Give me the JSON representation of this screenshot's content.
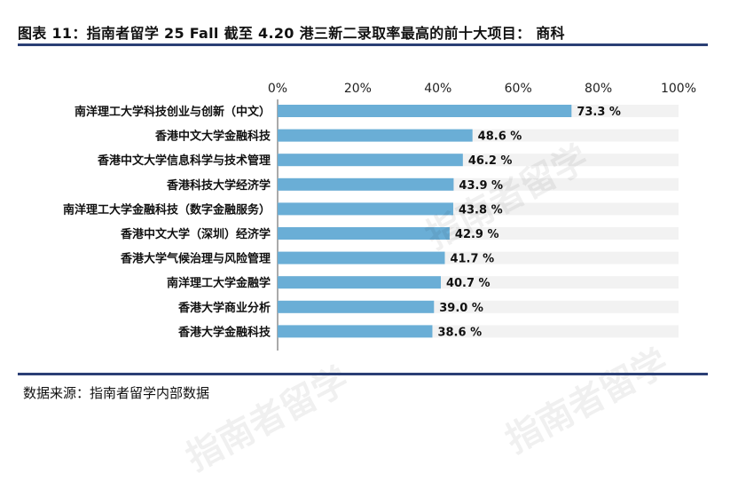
{
  "header": {
    "title": "图表 11：指南者留学 25 Fall 截至 4.20 港三新二录取率最高的前十大项目： 商科"
  },
  "footer": {
    "source": "数据来源：指南者留学内部数据"
  },
  "watermark": "指南者留学",
  "colors": {
    "bar": "#6aaed6",
    "track": "#f2f2f2",
    "rule": "#2b3f75"
  },
  "chart_data": {
    "type": "bar",
    "orientation": "horizontal",
    "categories": [
      "南洋理工大学科技创业与创新（中文）",
      "香港中文大学金融科技",
      "香港中文大学信息科学与技术管理",
      "香港科技大学经济学",
      "南洋理工大学金融科技（数字金融服务）",
      "香港中文大学（深圳）经济学",
      "香港大学气候治理与风险管理",
      "南洋理工大学金融学",
      "香港大学商业分析",
      "香港大学金融科技"
    ],
    "values": [
      73.3,
      48.6,
      46.2,
      43.9,
      43.8,
      42.9,
      41.7,
      40.7,
      39.0,
      38.6
    ],
    "value_labels": [
      "73.3 %",
      "48.6 %",
      "46.2 %",
      "43.9 %",
      "43.8 %",
      "42.9 %",
      "41.7 %",
      "40.7 %",
      "39.0 %",
      "38.6 %"
    ],
    "x_ticks": [
      "0%",
      "20%",
      "40%",
      "60%",
      "80%",
      "100%"
    ],
    "xlim": [
      0,
      100
    ],
    "axis_position": "top",
    "grid": false,
    "title": "",
    "xlabel": "",
    "ylabel": ""
  }
}
